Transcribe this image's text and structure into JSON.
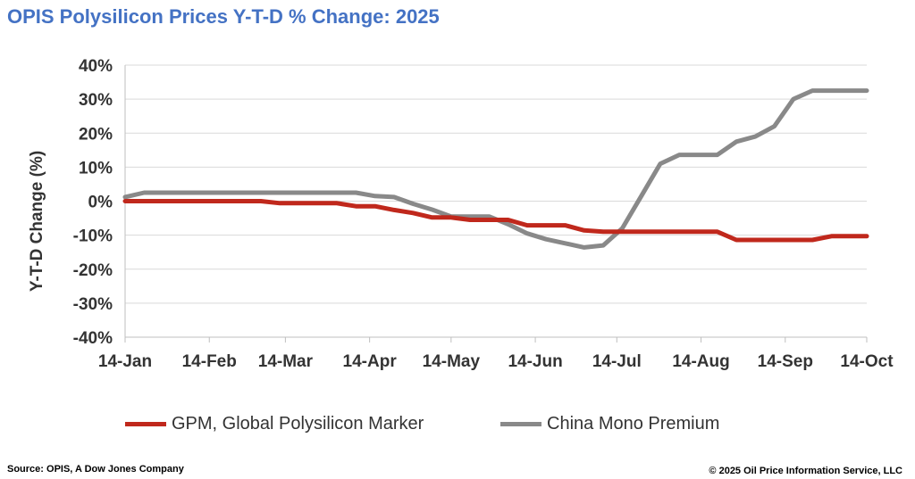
{
  "header": {
    "title": "OPIS Polysilicon Prices Y-T-D % Change: 2025"
  },
  "footer": {
    "source": "Source: OPIS, A Dow Jones Company",
    "copyright": "© 2025 Oil Price Information Service, LLC"
  },
  "chart_data": {
    "type": "line",
    "title": "OPIS Polysilicon Prices Y-T-D % Change: 2025",
    "xlabel": "",
    "ylabel": "Y-T-D Change (%)",
    "ylim": [
      -40,
      40
    ],
    "yticks": [
      40,
      30,
      20,
      10,
      0,
      -10,
      -20,
      -30,
      -40
    ],
    "ytick_labels": [
      "40%",
      "30%",
      "20%",
      "10%",
      "0%",
      "-10%",
      "-20%",
      "-30%",
      "-40%"
    ],
    "xlim": [
      "2025-01-14",
      "2025-10-14"
    ],
    "xtick_labels": [
      "14-Jan",
      "14-Feb",
      "14-Mar",
      "14-Apr",
      "14-May",
      "14-Jun",
      "14-Jul",
      "14-Aug",
      "14-Sep",
      "14-Oct"
    ],
    "xtick_dates": [
      "2025-01-14",
      "2025-02-14",
      "2025-03-14",
      "2025-04-14",
      "2025-05-14",
      "2025-06-14",
      "2025-07-14",
      "2025-08-14",
      "2025-09-14",
      "2025-10-14"
    ],
    "grid": true,
    "legend_position": "bottom",
    "series": [
      {
        "name": "GPM, Global Polysilicon Marker",
        "color": "#c0281c",
        "points": [
          [
            "2025-01-14",
            0
          ],
          [
            "2025-03-05",
            0
          ],
          [
            "2025-03-12",
            -0.6
          ],
          [
            "2025-04-02",
            -0.6
          ],
          [
            "2025-04-09",
            -1.5
          ],
          [
            "2025-04-16",
            -1.5
          ],
          [
            "2025-04-23",
            -2.6
          ],
          [
            "2025-04-30",
            -3.5
          ],
          [
            "2025-05-07",
            -4.8
          ],
          [
            "2025-05-14",
            -4.8
          ],
          [
            "2025-05-21",
            -5.5
          ],
          [
            "2025-06-04",
            -5.5
          ],
          [
            "2025-06-11",
            -7.1
          ],
          [
            "2025-06-25",
            -7.1
          ],
          [
            "2025-07-02",
            -8.6
          ],
          [
            "2025-07-09",
            -9.0
          ],
          [
            "2025-08-20",
            -9.0
          ],
          [
            "2025-08-27",
            -11.4
          ],
          [
            "2025-09-24",
            -11.4
          ],
          [
            "2025-10-01",
            -10.3
          ],
          [
            "2025-10-14",
            -10.3
          ]
        ]
      },
      {
        "name": "China Mono Premium",
        "color": "#898989",
        "points": [
          [
            "2025-01-14",
            1.2
          ],
          [
            "2025-01-21",
            2.5
          ],
          [
            "2025-04-09",
            2.5
          ],
          [
            "2025-04-16",
            1.5
          ],
          [
            "2025-04-23",
            1.2
          ],
          [
            "2025-04-30",
            -0.8
          ],
          [
            "2025-05-07",
            -2.5
          ],
          [
            "2025-05-14",
            -4.5
          ],
          [
            "2025-05-28",
            -4.5
          ],
          [
            "2025-06-04",
            -6.8
          ],
          [
            "2025-06-11",
            -9.5
          ],
          [
            "2025-06-18",
            -11.2
          ],
          [
            "2025-06-25",
            -12.4
          ],
          [
            "2025-07-02",
            -13.6
          ],
          [
            "2025-07-09",
            -13.0
          ],
          [
            "2025-07-16",
            -8.0
          ],
          [
            "2025-07-23",
            1.5
          ],
          [
            "2025-07-30",
            11.0
          ],
          [
            "2025-08-06",
            13.6
          ],
          [
            "2025-08-20",
            13.6
          ],
          [
            "2025-08-27",
            17.5
          ],
          [
            "2025-09-03",
            19.0
          ],
          [
            "2025-09-10",
            22.0
          ],
          [
            "2025-09-17",
            30.0
          ],
          [
            "2025-09-24",
            32.5
          ],
          [
            "2025-10-14",
            32.5
          ]
        ]
      }
    ]
  }
}
